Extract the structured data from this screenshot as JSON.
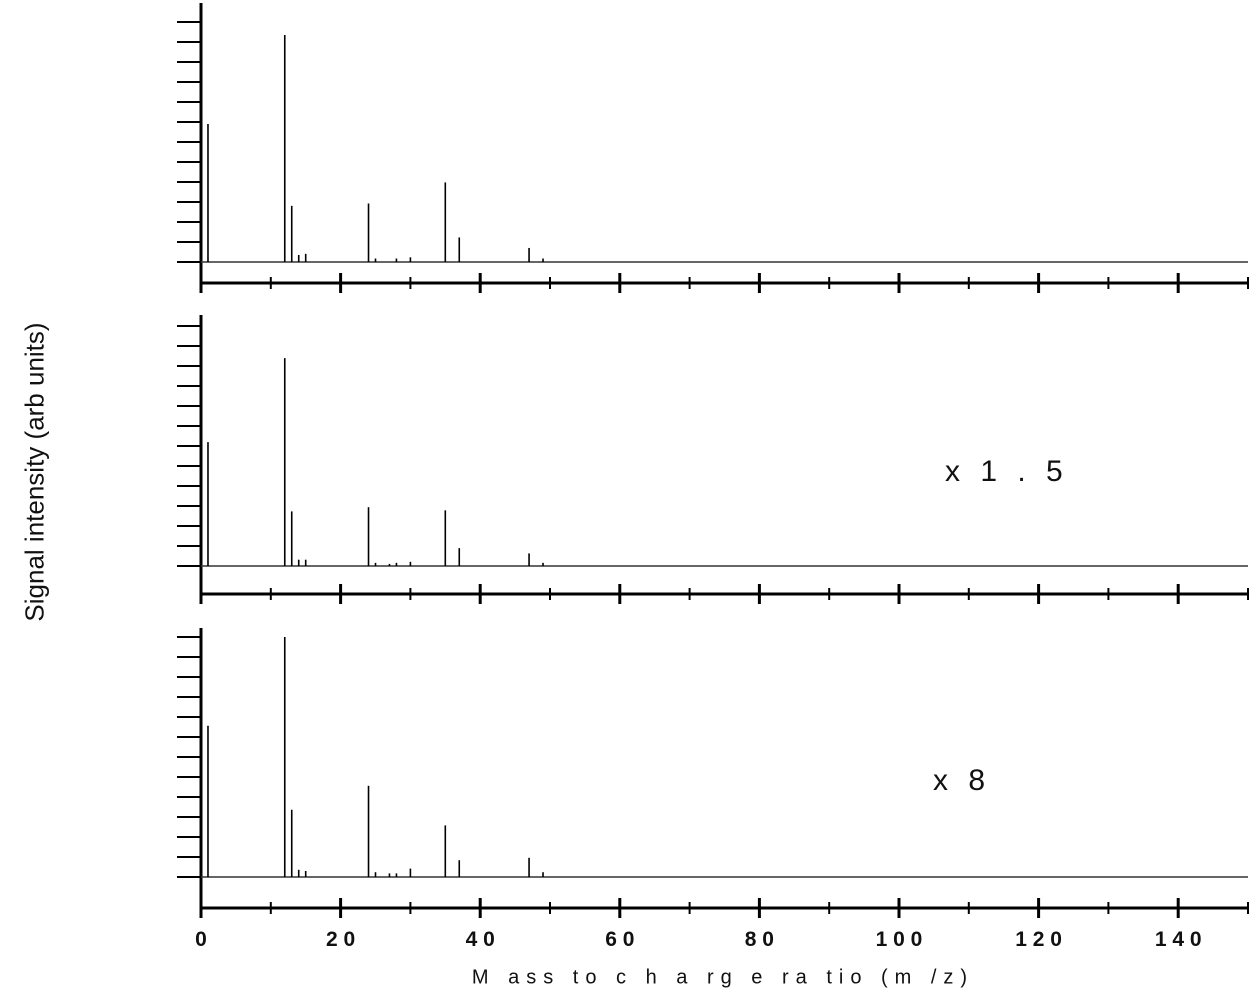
{
  "chart_data": {
    "type": "line",
    "xlabel": "M ass  to  c h a rg e  ra tio  (m /z)",
    "ylabel": "Signal intensity (arb units)",
    "xlim": [
      0,
      150
    ],
    "x_ticks": [
      0,
      20,
      40,
      60,
      80,
      100,
      120,
      140
    ],
    "x_tick_labels": [
      "0",
      "2 0",
      "4 0",
      "6 0",
      "8 0",
      "1 0 0",
      "1 2 0",
      "1 4 0"
    ],
    "panels": [
      {
        "scale_label": "",
        "ylim": [
          0,
          1.0
        ],
        "peaks": [
          {
            "x": 1,
            "y": 0.59
          },
          {
            "x": 12,
            "y": 0.97
          },
          {
            "x": 13,
            "y": 0.24
          },
          {
            "x": 14,
            "y": 0.03
          },
          {
            "x": 15,
            "y": 0.035
          },
          {
            "x": 24,
            "y": 0.25
          },
          {
            "x": 25,
            "y": 0.015
          },
          {
            "x": 28,
            "y": 0.015
          },
          {
            "x": 30,
            "y": 0.02
          },
          {
            "x": 35,
            "y": 0.34
          },
          {
            "x": 37,
            "y": 0.105
          },
          {
            "x": 47,
            "y": 0.06
          },
          {
            "x": 49,
            "y": 0.015
          }
        ]
      },
      {
        "scale_label": "x  1 . 5",
        "ylim": [
          0,
          1.0
        ],
        "peaks": [
          {
            "x": 1,
            "y": 0.59
          },
          {
            "x": 12,
            "y": 0.99
          },
          {
            "x": 13,
            "y": 0.26
          },
          {
            "x": 14,
            "y": 0.03
          },
          {
            "x": 15,
            "y": 0.03
          },
          {
            "x": 24,
            "y": 0.28
          },
          {
            "x": 25,
            "y": 0.015
          },
          {
            "x": 27,
            "y": 0.01
          },
          {
            "x": 28,
            "y": 0.015
          },
          {
            "x": 30,
            "y": 0.02
          },
          {
            "x": 35,
            "y": 0.265
          },
          {
            "x": 37,
            "y": 0.085
          },
          {
            "x": 47,
            "y": 0.06
          },
          {
            "x": 49,
            "y": 0.015
          }
        ]
      },
      {
        "scale_label": "x  8",
        "ylim": [
          0,
          1.0
        ],
        "peaks": [
          {
            "x": 1,
            "y": 0.63
          },
          {
            "x": 12,
            "y": 1.0
          },
          {
            "x": 13,
            "y": 0.28
          },
          {
            "x": 14,
            "y": 0.03
          },
          {
            "x": 15,
            "y": 0.025
          },
          {
            "x": 24,
            "y": 0.38
          },
          {
            "x": 25,
            "y": 0.02
          },
          {
            "x": 27,
            "y": 0.015
          },
          {
            "x": 28,
            "y": 0.015
          },
          {
            "x": 30,
            "y": 0.035
          },
          {
            "x": 35,
            "y": 0.215
          },
          {
            "x": 37,
            "y": 0.07
          },
          {
            "x": 47,
            "y": 0.08
          },
          {
            "x": 49,
            "y": 0.02
          }
        ]
      }
    ]
  }
}
